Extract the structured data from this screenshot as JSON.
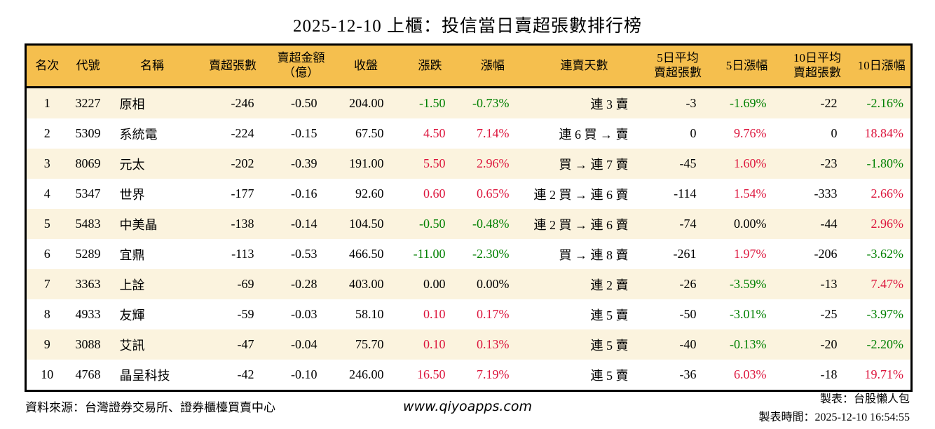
{
  "page": {
    "title": "2025-12-10 上櫃：投信當日賣超張數排行榜"
  },
  "chart_data": {
    "type": "table",
    "title": "2025-12-10 上櫃：投信當日賣超張數排行榜",
    "columns": [
      "名次",
      "代號",
      "名稱",
      "賣超張數",
      "賣超金額（億）",
      "收盤",
      "漲跌",
      "漲幅",
      "連賣天數",
      "5日平均賣超張數",
      "5日漲幅",
      "10日平均賣超張數",
      "10日漲幅"
    ],
    "rows": [
      [
        "1",
        "3227",
        "原相",
        "-246",
        "-0.50",
        "204.00",
        "-1.50",
        "-0.73%",
        "連 3 賣",
        "-3",
        "-1.69%",
        "-22",
        "-2.16%"
      ],
      [
        "2",
        "5309",
        "系統電",
        "-224",
        "-0.15",
        "67.50",
        "4.50",
        "7.14%",
        "連 6 買 → 賣",
        "0",
        "9.76%",
        "0",
        "18.84%"
      ],
      [
        "3",
        "8069",
        "元太",
        "-202",
        "-0.39",
        "191.00",
        "5.50",
        "2.96%",
        "買 → 連 7 賣",
        "-45",
        "1.60%",
        "-23",
        "-1.80%"
      ],
      [
        "4",
        "5347",
        "世界",
        "-177",
        "-0.16",
        "92.60",
        "0.60",
        "0.65%",
        "連 2 買 → 連 6 賣",
        "-114",
        "1.54%",
        "-333",
        "2.66%"
      ],
      [
        "5",
        "5483",
        "中美晶",
        "-138",
        "-0.14",
        "104.50",
        "-0.50",
        "-0.48%",
        "連 2 買 → 連 6 賣",
        "-74",
        "0.00%",
        "-44",
        "2.96%"
      ],
      [
        "6",
        "5289",
        "宜鼎",
        "-113",
        "-0.53",
        "466.50",
        "-11.00",
        "-2.30%",
        "買 → 連 8 賣",
        "-261",
        "1.97%",
        "-206",
        "-3.62%"
      ],
      [
        "7",
        "3363",
        "上詮",
        "-69",
        "-0.28",
        "403.00",
        "0.00",
        "0.00%",
        "連 2 賣",
        "-26",
        "-3.59%",
        "-13",
        "7.47%"
      ],
      [
        "8",
        "4933",
        "友輝",
        "-59",
        "-0.03",
        "58.10",
        "0.10",
        "0.17%",
        "連 5 賣",
        "-50",
        "-3.01%",
        "-25",
        "-3.97%"
      ],
      [
        "9",
        "3088",
        "艾訊",
        "-47",
        "-0.04",
        "75.70",
        "0.10",
        "0.13%",
        "連 5 賣",
        "-40",
        "-0.13%",
        "-20",
        "-2.20%"
      ],
      [
        "10",
        "4768",
        "晶呈科技",
        "-42",
        "-0.10",
        "246.00",
        "16.50",
        "7.19%",
        "連 5 賣",
        "-36",
        "6.03%",
        "-18",
        "19.71%"
      ]
    ],
    "color_rule": "漲跌/漲幅/5日漲幅/10日漲幅：正值紅色、負值綠色、零黑色"
  },
  "table": {
    "header_lines": [
      [
        "名次"
      ],
      [
        "代號"
      ],
      [
        "名稱"
      ],
      [
        "賣超張數"
      ],
      [
        "賣超金額",
        "（億）"
      ],
      [
        "收盤"
      ],
      [
        "漲跌"
      ],
      [
        "漲幅"
      ],
      [
        "連賣天數"
      ],
      [
        "5日平均",
        "賣超張數"
      ],
      [
        "5日漲幅"
      ],
      [
        "10日平均",
        "賣超張數"
      ],
      [
        "10日漲幅"
      ]
    ]
  },
  "footer": {
    "source": "資料來源：台灣證券交易所、證券櫃檯買賣中心",
    "website": "www.qiyoapps.com",
    "maker": "製表：台股懶人包",
    "made_time": "製表時間：2025-12-10 16:54:55"
  },
  "colors": {
    "up_red": "#dc143c",
    "down_green": "#008000",
    "neutral": "#000000",
    "header_bg": "#f5bf4e",
    "stripe": "#fbf3de",
    "border": "#000000"
  }
}
